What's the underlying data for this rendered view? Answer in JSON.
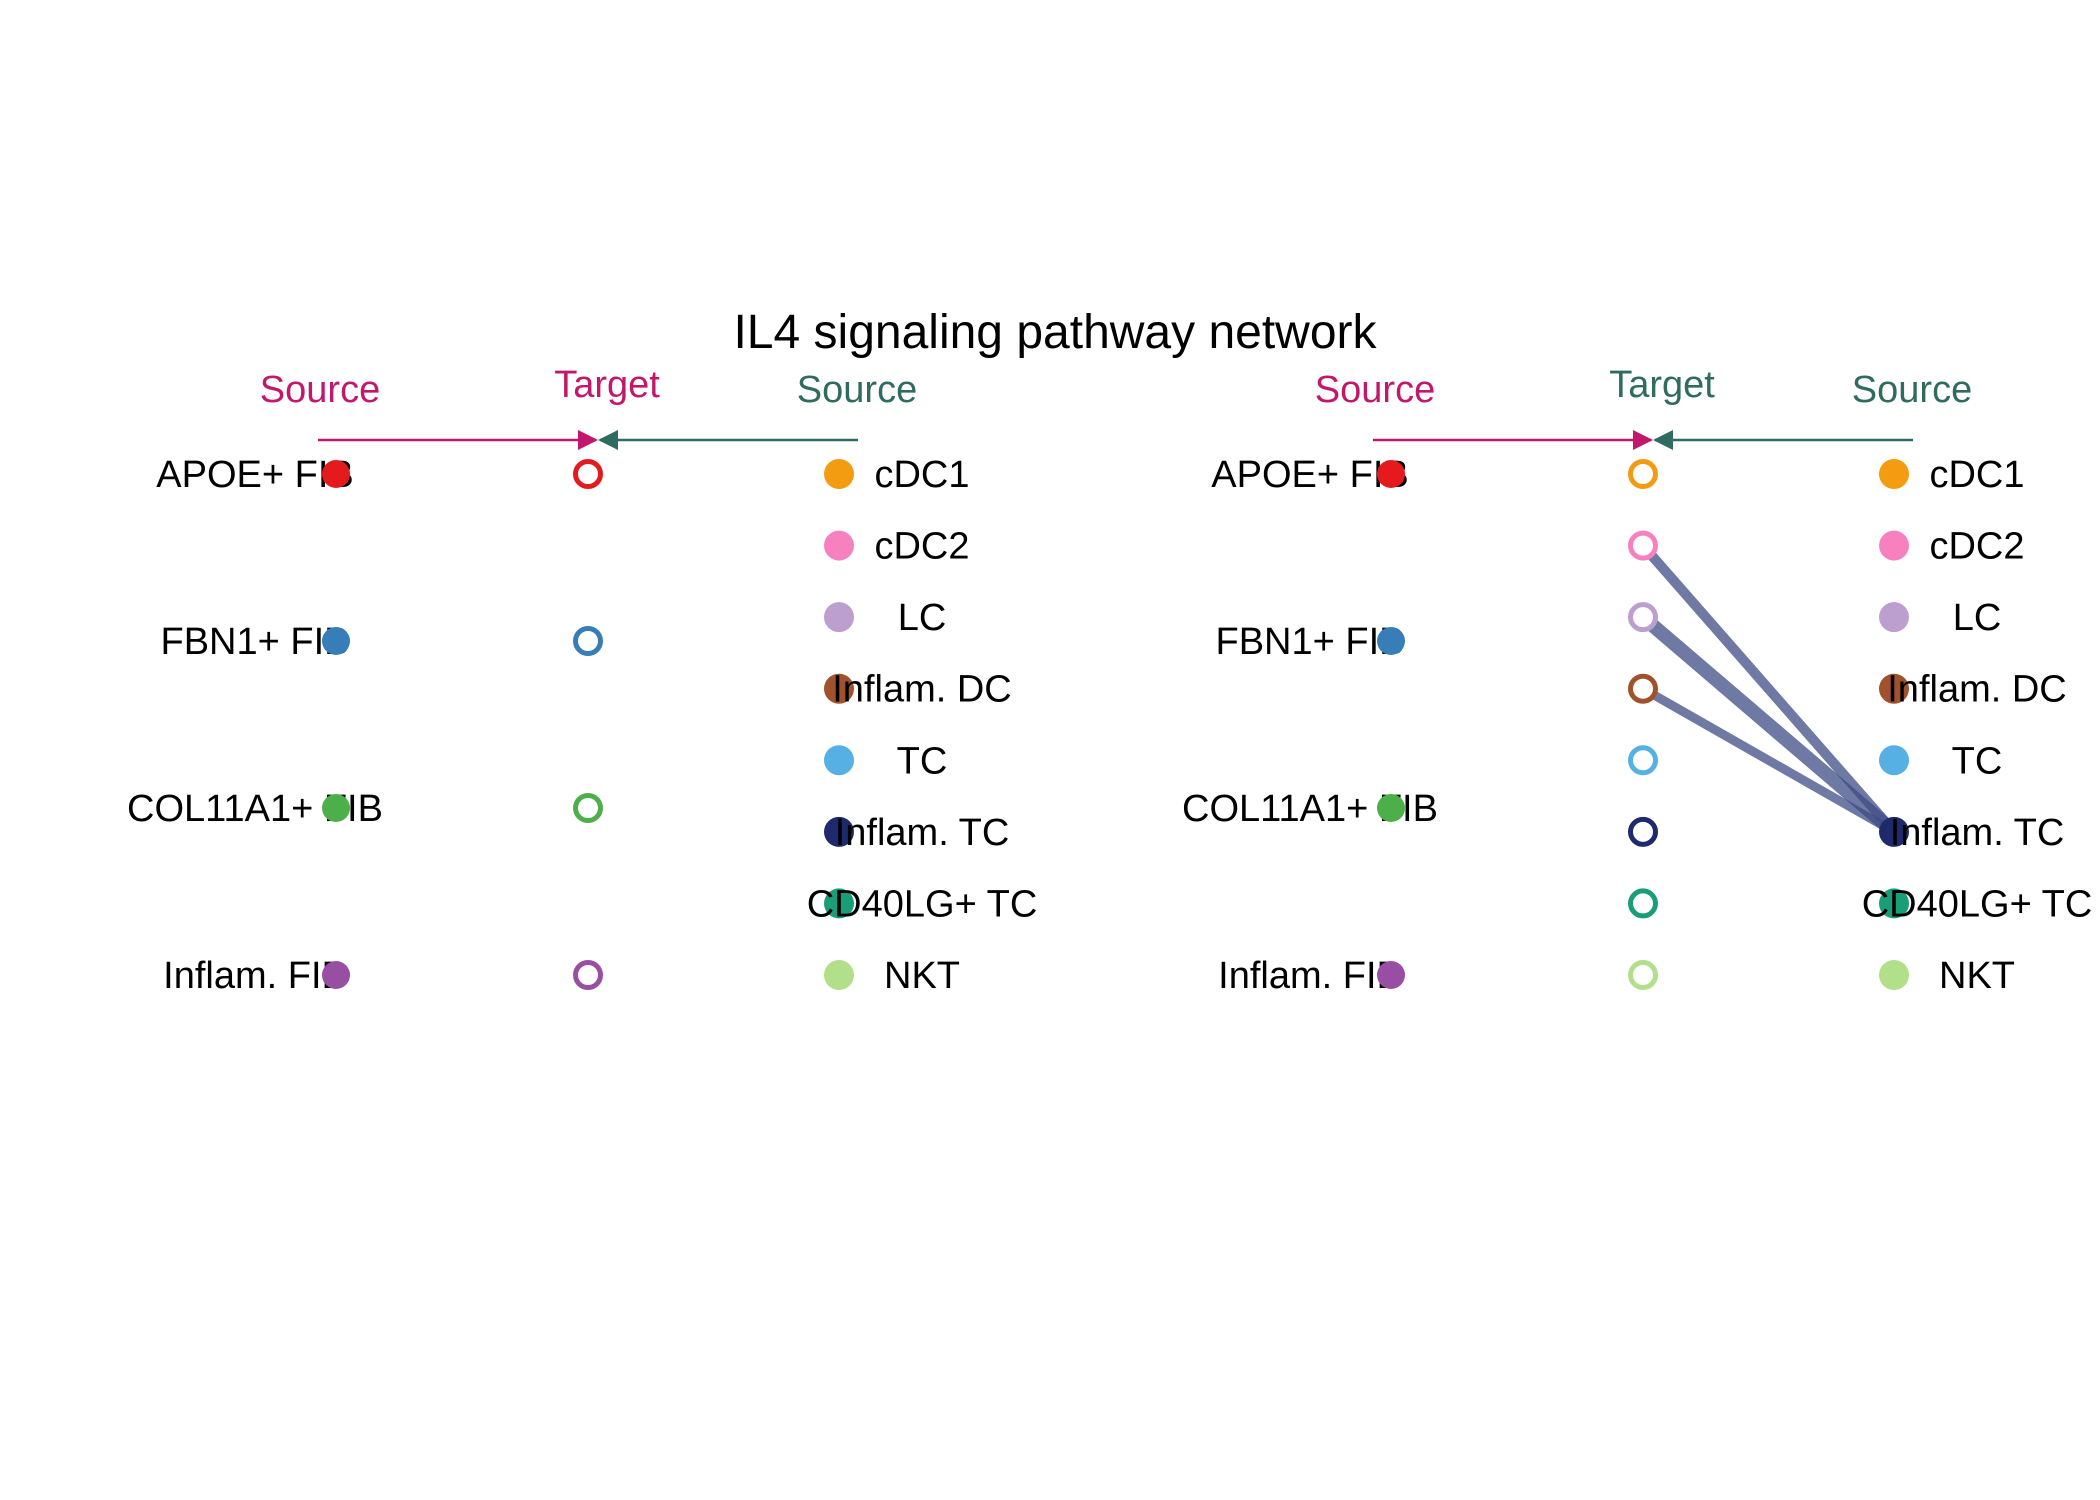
{
  "title": "IL4 signaling pathway network",
  "panels": [
    {
      "headers": {
        "left_source": "Source",
        "target": "Target",
        "right_source": "Source"
      },
      "header_colors": {
        "left": "#C2186B",
        "right": "#2F6B5E"
      },
      "left_sources": [
        {
          "label": "APOE+ FIB",
          "color": "#E41A1C"
        },
        {
          "label": "FBN1+ FIB",
          "color": "#377EB8"
        },
        {
          "label": "COL11A1+ FIB",
          "color": "#4DAF4A"
        },
        {
          "label": "Inflam. FIB",
          "color": "#984EA3"
        }
      ],
      "targets": [
        {
          "color": "#E41A1C"
        },
        {
          "color": "#377EB8"
        },
        {
          "color": "#4DAF4A"
        },
        {
          "color": "#984EA3"
        }
      ],
      "right_sources": [
        {
          "label": "cDC1",
          "color": "#F39B11"
        },
        {
          "label": "cDC2",
          "color": "#F781BF"
        },
        {
          "label": "LC",
          "color": "#BC9ECF"
        },
        {
          "label": "Inflam. DC",
          "color": "#A0522D"
        },
        {
          "label": "TC",
          "color": "#56B0E4"
        },
        {
          "label": "Inflam. TC",
          "color": "#1E2A6E"
        },
        {
          "label": "CD40LG+ TC",
          "color": "#1A9E77"
        },
        {
          "label": "NKT",
          "color": "#B2DF8A"
        }
      ],
      "edges": []
    },
    {
      "headers": {
        "left_source": "Source",
        "target": "Target",
        "right_source": "Source"
      },
      "header_colors": {
        "left": "#C2186B",
        "right": "#2F6B5E"
      },
      "left_sources": [
        {
          "label": "APOE+ FIB",
          "color": "#E41A1C"
        },
        {
          "label": "FBN1+ FIB",
          "color": "#377EB8"
        },
        {
          "label": "COL11A1+ FIB",
          "color": "#4DAF4A"
        },
        {
          "label": "Inflam. FIB",
          "color": "#984EA3"
        }
      ],
      "targets": [
        {
          "color": "#F39B11"
        },
        {
          "color": "#F781BF"
        },
        {
          "color": "#BC9ECF"
        },
        {
          "color": "#A0522D"
        },
        {
          "color": "#56B0E4"
        },
        {
          "color": "#1E2A6E"
        },
        {
          "color": "#1A9E77"
        },
        {
          "color": "#B2DF8A"
        }
      ],
      "right_sources": [
        {
          "label": "cDC1",
          "color": "#F39B11"
        },
        {
          "label": "cDC2",
          "color": "#F781BF"
        },
        {
          "label": "LC",
          "color": "#BC9ECF"
        },
        {
          "label": "Inflam. DC",
          "color": "#A0522D"
        },
        {
          "label": "TC",
          "color": "#56B0E4"
        },
        {
          "label": "Inflam. TC",
          "color": "#1E2A6E"
        },
        {
          "label": "CD40LG+ TC",
          "color": "#1A9E77"
        },
        {
          "label": "NKT",
          "color": "#B2DF8A"
        }
      ],
      "edges": [
        {
          "source": "Inflam. TC",
          "target_index": 1,
          "weight": 0.6
        },
        {
          "source": "Inflam. TC",
          "target_index": 2,
          "weight": 1.0
        },
        {
          "source": "Inflam. TC",
          "target_index": 3,
          "weight": 0.5
        }
      ],
      "edge_color": "#3E4C86"
    }
  ]
}
